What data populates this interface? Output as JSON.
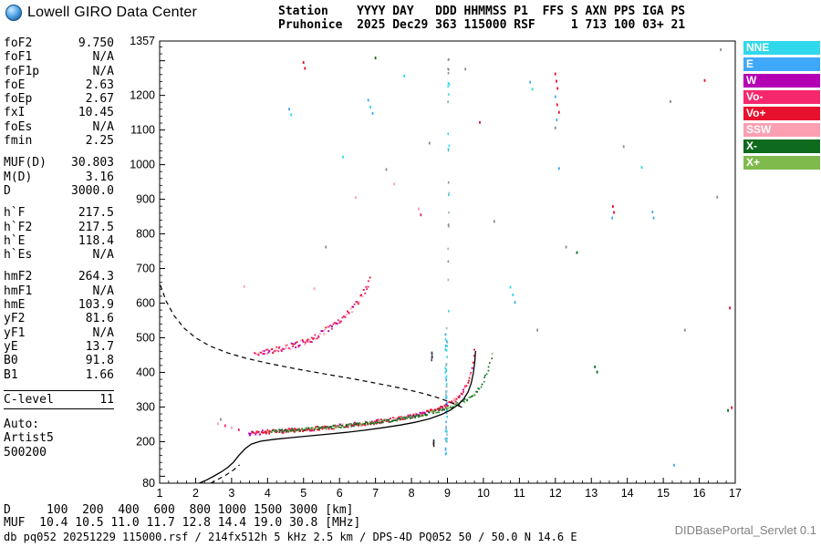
{
  "header": {
    "brand": "Lowell GIRO Data Center",
    "station_line1": "Station    YYYY DAY   DDD HHMMSS P1  FFS S AXN PPS IGA PS",
    "station_line2": "Pruhonice  2025 Dec29 363 115000 RSF     1 713 100 03+ 21"
  },
  "params": {
    "groups": [
      {
        "rows": [
          [
            "foF2",
            "9.750"
          ],
          [
            "foF1",
            "N/A"
          ],
          [
            "foF1p",
            "N/A"
          ],
          [
            "foE",
            "2.63"
          ],
          [
            "foEp",
            "2.67"
          ],
          [
            "fxI",
            "10.45"
          ],
          [
            "foEs",
            "N/A"
          ],
          [
            "fmin",
            "2.25"
          ]
        ]
      },
      {
        "rows": [
          [
            "MUF(D)",
            "30.803"
          ],
          [
            "M(D)",
            "3.16"
          ],
          [
            "D",
            "3000.0"
          ]
        ]
      },
      {
        "rows": [
          [
            "h`F",
            "217.5"
          ],
          [
            "h`F2",
            "217.5"
          ],
          [
            "h`E",
            "118.4"
          ],
          [
            "h`Es",
            "N/A"
          ]
        ]
      },
      {
        "rows": [
          [
            "hmF2",
            "264.3"
          ],
          [
            "hmF1",
            "N/A"
          ],
          [
            "hmE",
            "103.9"
          ],
          [
            "yF2",
            "81.6"
          ],
          [
            "yF1",
            "N/A"
          ],
          [
            "yE",
            "13.7"
          ],
          [
            "B0",
            "91.8"
          ],
          [
            "B1",
            "1.66"
          ]
        ]
      },
      {
        "rows": [
          [
            "C-level",
            "11"
          ]
        ],
        "boxed": true
      }
    ],
    "auto_lines": [
      "Auto:",
      "Artist5",
      "500200"
    ]
  },
  "legend": {
    "items": [
      {
        "label": "NNE",
        "color": "#2FD8EA"
      },
      {
        "label": "E",
        "color": "#3FA8F8"
      },
      {
        "label": "W",
        "color": "#B400B4"
      },
      {
        "label": "Vo-",
        "color": "#F5286E"
      },
      {
        "label": "Vo+",
        "color": "#E8112D"
      },
      {
        "label": "SSW",
        "color": "#FB9FB1"
      },
      {
        "label": "X-",
        "color": "#0E6B1E"
      },
      {
        "label": "X+",
        "color": "#7FBA4C"
      }
    ]
  },
  "muf_table": {
    "row1_label": "D",
    "row2_label": "MUF",
    "unit_km": "[km]",
    "unit_mhz": "[MHz]",
    "distances": [
      100,
      200,
      400,
      600,
      800,
      1000,
      1500,
      3000
    ],
    "muf": [
      10.4,
      10.5,
      11.0,
      11.7,
      12.8,
      14.4,
      19.0,
      30.8
    ]
  },
  "footer": {
    "measurement": "db pq052 20251229 115000.rsf / 214fx512h 5 kHz 2.5 km / DPS-4D PQ052 50 / 50.0 N 14.6 E",
    "servlet": "DIDBasePortal_Servlet 0.1"
  },
  "chart_data": {
    "type": "scatter",
    "title": "Pruhonice ionogram 2025 Dec29 363 115000",
    "xlabel": "",
    "ylabel": "",
    "xlim": [
      1,
      17
    ],
    "ylim": [
      80,
      1357
    ],
    "x_ticks": [
      1,
      2,
      3,
      4,
      5,
      6,
      7,
      8,
      9,
      10,
      11,
      12,
      13,
      14,
      15,
      16,
      17
    ],
    "y_label_values": [
      1357,
      1200,
      1100,
      1000,
      900,
      800,
      700,
      600,
      500,
      400,
      300,
      200,
      80
    ],
    "seed": 1337,
    "noise_palette": [
      "#E8112D",
      "#0E6B1E",
      "#3FA8F8",
      "#2FD8EA",
      "#B400B4",
      "#FB9FB1",
      "#8C8C8C",
      "#F5286E"
    ],
    "traces": [
      {
        "name": "F-region ordinary trace",
        "step": 0.022,
        "jitter": 2.2,
        "dot": 1.9,
        "palette": [
          "#E8112D",
          "#E8112D",
          "#F5286E",
          "#FB9FB1",
          "#B400B4",
          "#E8112D"
        ],
        "path": [
          [
            3.5,
            224
          ],
          [
            4.0,
            228
          ],
          [
            4.5,
            231
          ],
          [
            5.0,
            235
          ],
          [
            5.5,
            239
          ],
          [
            6.0,
            244
          ],
          [
            6.5,
            250
          ],
          [
            7.0,
            257
          ],
          [
            7.5,
            264
          ],
          [
            8.0,
            273
          ],
          [
            8.4,
            282
          ],
          [
            8.8,
            295
          ],
          [
            9.05,
            308
          ],
          [
            9.25,
            322
          ],
          [
            9.4,
            338
          ],
          [
            9.52,
            358
          ],
          [
            9.62,
            384
          ],
          [
            9.69,
            418
          ],
          [
            9.73,
            452
          ],
          [
            9.75,
            472
          ]
        ]
      },
      {
        "name": "F-region extraordinary trace",
        "step": 0.03,
        "jitter": 1.6,
        "dot": 1.7,
        "palette": [
          "#0E6B1E",
          "#0E6B1E",
          "#1F8A2F",
          "#7FBA4C"
        ],
        "path": [
          [
            4.1,
            230
          ],
          [
            4.8,
            234
          ],
          [
            5.5,
            239
          ],
          [
            6.2,
            246
          ],
          [
            6.9,
            254
          ],
          [
            7.6,
            263
          ],
          [
            8.2,
            274
          ],
          [
            8.7,
            287
          ],
          [
            9.1,
            300
          ],
          [
            9.45,
            316
          ],
          [
            9.75,
            336
          ],
          [
            9.95,
            362
          ],
          [
            10.1,
            395
          ],
          [
            10.2,
            430
          ],
          [
            10.26,
            462
          ]
        ]
      },
      {
        "name": "second-hop F trace",
        "step": 0.028,
        "jitter": 3.5,
        "dot": 1.9,
        "palette": [
          "#F5286E",
          "#B400B4",
          "#FB9FB1",
          "#E8112D",
          "#F5286E"
        ],
        "path": [
          [
            3.65,
            452
          ],
          [
            4.1,
            461
          ],
          [
            4.55,
            471
          ],
          [
            4.95,
            484
          ],
          [
            5.3,
            500
          ],
          [
            5.6,
            518
          ],
          [
            5.9,
            540
          ],
          [
            6.15,
            562
          ],
          [
            6.4,
            588
          ],
          [
            6.6,
            616
          ],
          [
            6.75,
            644
          ],
          [
            6.86,
            672
          ]
        ]
      }
    ],
    "columns": [
      {
        "x": 8.97,
        "y_range": [
          160,
          540
        ],
        "count": 60,
        "jitter_x": 1.2,
        "palette": [
          "#2FD8EA",
          "#3FA8F8",
          "#9fb8bd",
          "#2FD8EA"
        ]
      },
      {
        "x": 9.03,
        "y_range": [
          540,
          1320
        ],
        "count": 26,
        "jitter_x": 0.8,
        "palette": [
          "#9fb8bd",
          "#2FD8EA",
          "#8C8C8C"
        ]
      },
      {
        "x": 8.57,
        "y_range": [
          432,
          470
        ],
        "count": 7,
        "jitter_x": 0.4,
        "palette": [
          "#444455",
          "#666677"
        ]
      },
      {
        "x": 8.62,
        "y_range": [
          183,
          206
        ],
        "count": 4,
        "jitter_x": 0.3,
        "palette": [
          "#222222"
        ]
      }
    ],
    "noise": [
      [
        2.62,
        252,
        5
      ],
      [
        2.82,
        246,
        7
      ],
      [
        3.0,
        240,
        5
      ],
      [
        3.2,
        234,
        7
      ],
      [
        2.7,
        264,
        6
      ],
      [
        3.35,
        648,
        5
      ],
      [
        4.6,
        1160,
        2
      ],
      [
        4.66,
        1144,
        3
      ],
      [
        5.0,
        1295,
        0
      ],
      [
        5.04,
        1278,
        0
      ],
      [
        5.3,
        642,
        5
      ],
      [
        5.62,
        762,
        6
      ],
      [
        6.1,
        1022,
        3
      ],
      [
        6.45,
        905,
        5
      ],
      [
        6.8,
        1186,
        2
      ],
      [
        6.86,
        1166,
        3
      ],
      [
        6.92,
        1148,
        2
      ],
      [
        7.0,
        1308,
        1
      ],
      [
        7.3,
        986,
        6
      ],
      [
        7.52,
        944,
        5
      ],
      [
        7.8,
        1256,
        3
      ],
      [
        8.2,
        872,
        5
      ],
      [
        8.26,
        855,
        7
      ],
      [
        8.5,
        1062,
        6
      ],
      [
        9.5,
        1276,
        6
      ],
      [
        9.9,
        1122,
        0
      ],
      [
        10.3,
        836,
        6
      ],
      [
        10.75,
        646,
        3
      ],
      [
        10.82,
        624,
        3
      ],
      [
        10.88,
        602,
        2
      ],
      [
        11.3,
        1238,
        2
      ],
      [
        11.36,
        1218,
        3
      ],
      [
        11.5,
        522,
        6
      ],
      [
        12.0,
        1262,
        0
      ],
      [
        12.03,
        1241,
        0
      ],
      [
        12.06,
        1220,
        0
      ],
      [
        12.0,
        1196,
        2
      ],
      [
        12.05,
        1173,
        0
      ],
      [
        12.1,
        1151,
        0
      ],
      [
        12.04,
        1129,
        2
      ],
      [
        12.0,
        1106,
        6
      ],
      [
        12.1,
        989,
        2
      ],
      [
        12.3,
        762,
        6
      ],
      [
        12.6,
        746,
        1
      ],
      [
        13.1,
        416,
        1
      ],
      [
        13.16,
        401,
        1
      ],
      [
        13.6,
        879,
        0
      ],
      [
        13.63,
        862,
        0
      ],
      [
        13.58,
        846,
        2
      ],
      [
        13.9,
        1052,
        6
      ],
      [
        14.4,
        992,
        3
      ],
      [
        14.7,
        863,
        2
      ],
      [
        14.73,
        846,
        2
      ],
      [
        15.2,
        1182,
        6
      ],
      [
        15.3,
        132,
        2
      ],
      [
        15.6,
        522,
        6
      ],
      [
        16.15,
        1243,
        0
      ],
      [
        16.5,
        906,
        6
      ],
      [
        16.85,
        586,
        0
      ],
      [
        16.9,
        298,
        0
      ],
      [
        16.8,
        290,
        1
      ],
      [
        16.6,
        1332,
        6
      ]
    ],
    "black_curves": [
      {
        "style": "solid",
        "width": 1.3,
        "points": [
          [
            2.1,
            80
          ],
          [
            2.32,
            90
          ],
          [
            2.52,
            101
          ],
          [
            2.72,
            113
          ],
          [
            2.9,
            126
          ],
          [
            3.05,
            140
          ],
          [
            3.2,
            160
          ],
          [
            3.38,
            180
          ],
          [
            3.55,
            193
          ],
          [
            3.8,
            201
          ],
          [
            4.2,
            207
          ],
          [
            4.7,
            212
          ],
          [
            5.2,
            217
          ],
          [
            5.7,
            222
          ],
          [
            6.2,
            227
          ],
          [
            6.7,
            233
          ],
          [
            7.2,
            240
          ],
          [
            7.7,
            248
          ],
          [
            8.1,
            256
          ],
          [
            8.5,
            266
          ],
          [
            8.85,
            279
          ],
          [
            9.1,
            292
          ],
          [
            9.3,
            307
          ],
          [
            9.45,
            323
          ],
          [
            9.57,
            343
          ],
          [
            9.66,
            368
          ],
          [
            9.72,
            398
          ],
          [
            9.76,
            432
          ],
          [
            9.78,
            462
          ]
        ]
      },
      {
        "style": "dashed",
        "width": 1.2,
        "points": [
          [
            2.42,
            80
          ],
          [
            2.62,
            91
          ],
          [
            2.85,
            104
          ],
          [
            3.05,
            118
          ],
          [
            3.22,
            133
          ]
        ]
      },
      {
        "style": "dashed",
        "width": 1.2,
        "points": [
          [
            1.02,
            652
          ],
          [
            1.18,
            606
          ],
          [
            1.4,
            564
          ],
          [
            1.68,
            528
          ],
          [
            2.0,
            500
          ],
          [
            2.4,
            476
          ],
          [
            2.9,
            456
          ],
          [
            3.4,
            441
          ],
          [
            3.9,
            429
          ],
          [
            4.4,
            418
          ],
          [
            4.9,
            408
          ],
          [
            5.4,
            399
          ],
          [
            5.9,
            390
          ],
          [
            6.4,
            381
          ],
          [
            6.9,
            371
          ],
          [
            7.4,
            361
          ],
          [
            7.9,
            350
          ],
          [
            8.3,
            340
          ],
          [
            8.7,
            328
          ],
          [
            9.0,
            317
          ],
          [
            9.25,
            306
          ],
          [
            9.45,
            297
          ]
        ]
      }
    ]
  }
}
